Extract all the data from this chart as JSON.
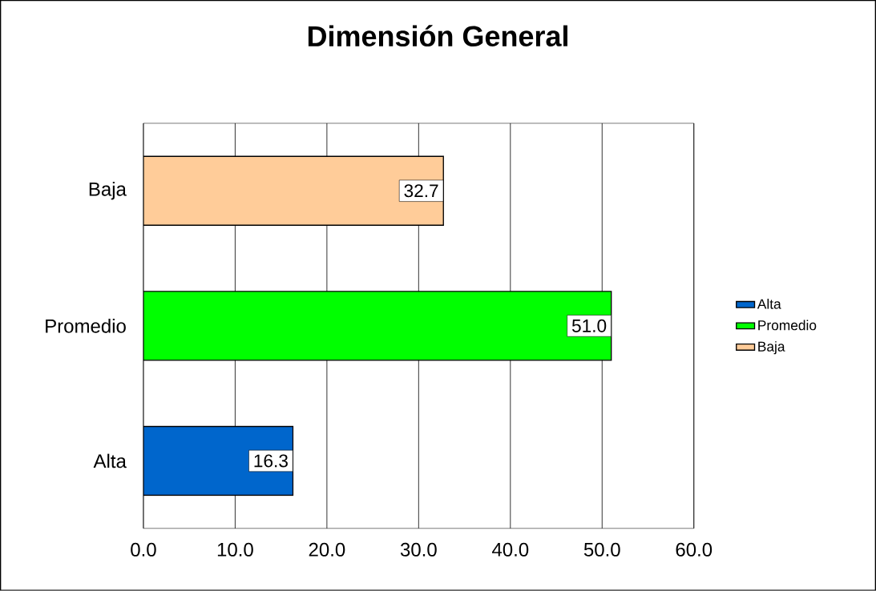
{
  "chart_data": {
    "type": "bar",
    "orientation": "horizontal",
    "title": "Dimensión General",
    "categories": [
      "Baja",
      "Promedio",
      "Alta"
    ],
    "series": [
      {
        "name": "Alta",
        "color": "#0066cc",
        "values": [
          null,
          null,
          16.3
        ],
        "value_labels": [
          null,
          null,
          "16.3"
        ]
      },
      {
        "name": "Promedio",
        "color": "#00ff00",
        "values": [
          null,
          51.0,
          null
        ],
        "value_labels": [
          null,
          "51.0",
          null
        ]
      },
      {
        "name": "Baja",
        "color": "#ffcc99",
        "values": [
          32.7,
          null,
          null
        ],
        "value_labels": [
          "32.7",
          null,
          null
        ]
      }
    ],
    "xlim": [
      0,
      60
    ],
    "xticks": [
      {
        "value": 0,
        "label": "0.0"
      },
      {
        "value": 10,
        "label": "10.0"
      },
      {
        "value": 20,
        "label": "20.0"
      },
      {
        "value": 30,
        "label": "30.0"
      },
      {
        "value": 40,
        "label": "40.0"
      },
      {
        "value": 50,
        "label": "50.0"
      },
      {
        "value": 60,
        "label": "60.0"
      }
    ],
    "grid": "x",
    "legend": "right"
  }
}
